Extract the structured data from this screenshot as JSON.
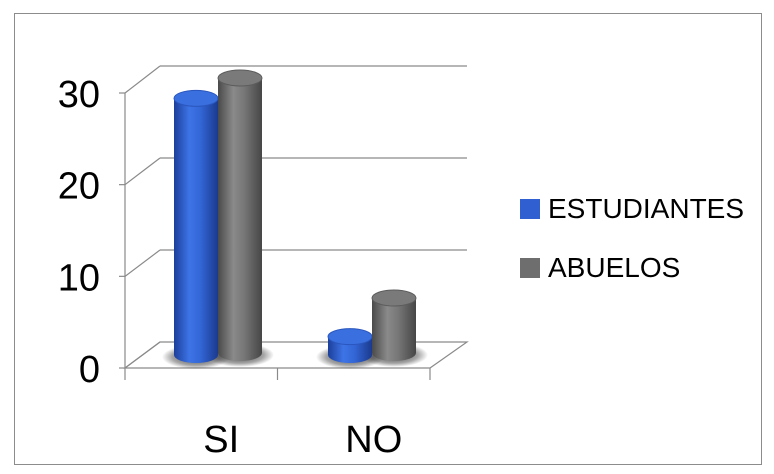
{
  "chart_data": {
    "type": "bar",
    "style": "3d-cylinder",
    "categories": [
      "SI",
      "NO"
    ],
    "series": [
      {
        "name": "ESTUDIANTES",
        "color": "#2f5fd0",
        "values": [
          28,
          2
        ]
      },
      {
        "name": "ABUELOS",
        "color": "#6e6e6e",
        "values": [
          30,
          6
        ]
      }
    ],
    "yticks": [
      0,
      10,
      20,
      30
    ],
    "ylim": [
      0,
      30
    ],
    "grid": true,
    "legend": "right",
    "title": "",
    "xlabel": "",
    "ylabel": ""
  }
}
